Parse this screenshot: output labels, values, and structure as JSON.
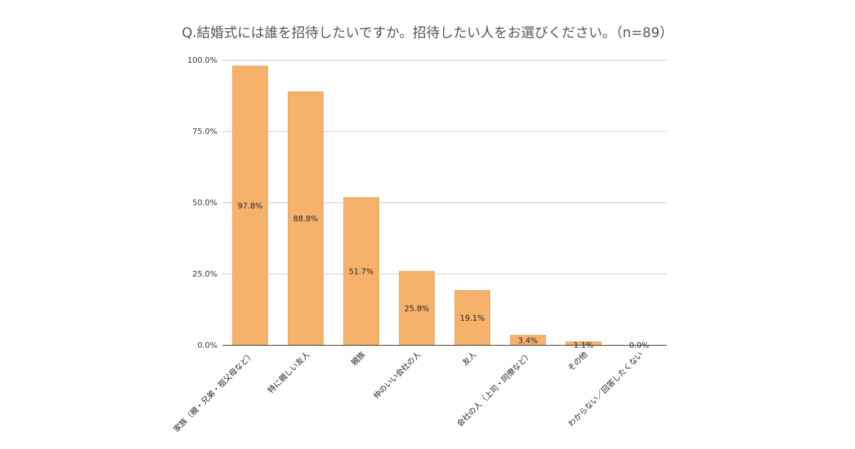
{
  "chart_data": {
    "type": "bar",
    "title": "Q.結婚式には誰を招待したいですか。招待したい人をお選びください。（n=89）",
    "xlabel": "",
    "ylabel": "",
    "ylim": [
      0,
      100
    ],
    "yticks": [
      {
        "value": 0,
        "label": "0.0%"
      },
      {
        "value": 25,
        "label": "25.0%"
      },
      {
        "value": 50,
        "label": "50.0%"
      },
      {
        "value": 75,
        "label": "75.0%"
      },
      {
        "value": 100,
        "label": "100.0%"
      }
    ],
    "categories": [
      "家族（親・兄弟・祖父母など）",
      "特に親しい友人",
      "親族",
      "仲のいい会社の人",
      "友人",
      "会社の人（上司・同僚など）",
      "その他",
      "わからない／回答したくない"
    ],
    "values": [
      97.8,
      88.8,
      51.7,
      25.8,
      19.1,
      3.4,
      1.1,
      0.0
    ],
    "value_labels": [
      "97.8%",
      "88.8%",
      "51.7%",
      "25.8%",
      "19.1%",
      "3.4%",
      "1.1%",
      "0.0%"
    ],
    "bar_color": "#f6b26b",
    "grid": true,
    "legend": "none"
  }
}
